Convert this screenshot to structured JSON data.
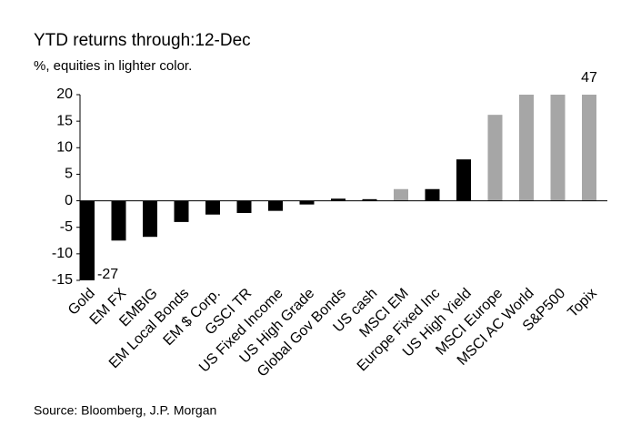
{
  "chart_data": {
    "type": "bar",
    "title": "YTD returns through:12-Dec",
    "subtitle": "%, equities in lighter color.",
    "source": "Source: Bloomberg,  J.P. Morgan",
    "categories": [
      "Gold",
      "EM FX",
      "EMBIG",
      "EM Local Bonds",
      "EM $ Corp.",
      "GSCI TR",
      "US Fixed Income",
      "US High Grade",
      "Global Gov Bonds",
      "US cash",
      "MSCI EM",
      "Europe Fixed Inc",
      "US High Yield",
      "MSCI Europe",
      "MSCI AC World",
      "S&P500",
      "Topix"
    ],
    "values": [
      -27,
      -7.5,
      -6.8,
      -4,
      -2.6,
      -2.3,
      -1.9,
      -0.7,
      0.4,
      0.3,
      2.2,
      2.2,
      7.8,
      16.2,
      20,
      20,
      47
    ],
    "value_labels": [
      "-27",
      null,
      null,
      null,
      null,
      null,
      null,
      null,
      null,
      null,
      null,
      null,
      null,
      null,
      null,
      null,
      "47"
    ],
    "colors": [
      "#000000",
      "#000000",
      "#000000",
      "#000000",
      "#000000",
      "#000000",
      "#000000",
      "#000000",
      "#000000",
      "#000000",
      "#a6a6a6",
      "#000000",
      "#000000",
      "#a6a6a6",
      "#a6a6a6",
      "#a6a6a6",
      "#a6a6a6"
    ],
    "ylim": [
      -15,
      20
    ],
    "yticks": [
      -15,
      -10,
      -5,
      0,
      5,
      10,
      15,
      20
    ]
  }
}
